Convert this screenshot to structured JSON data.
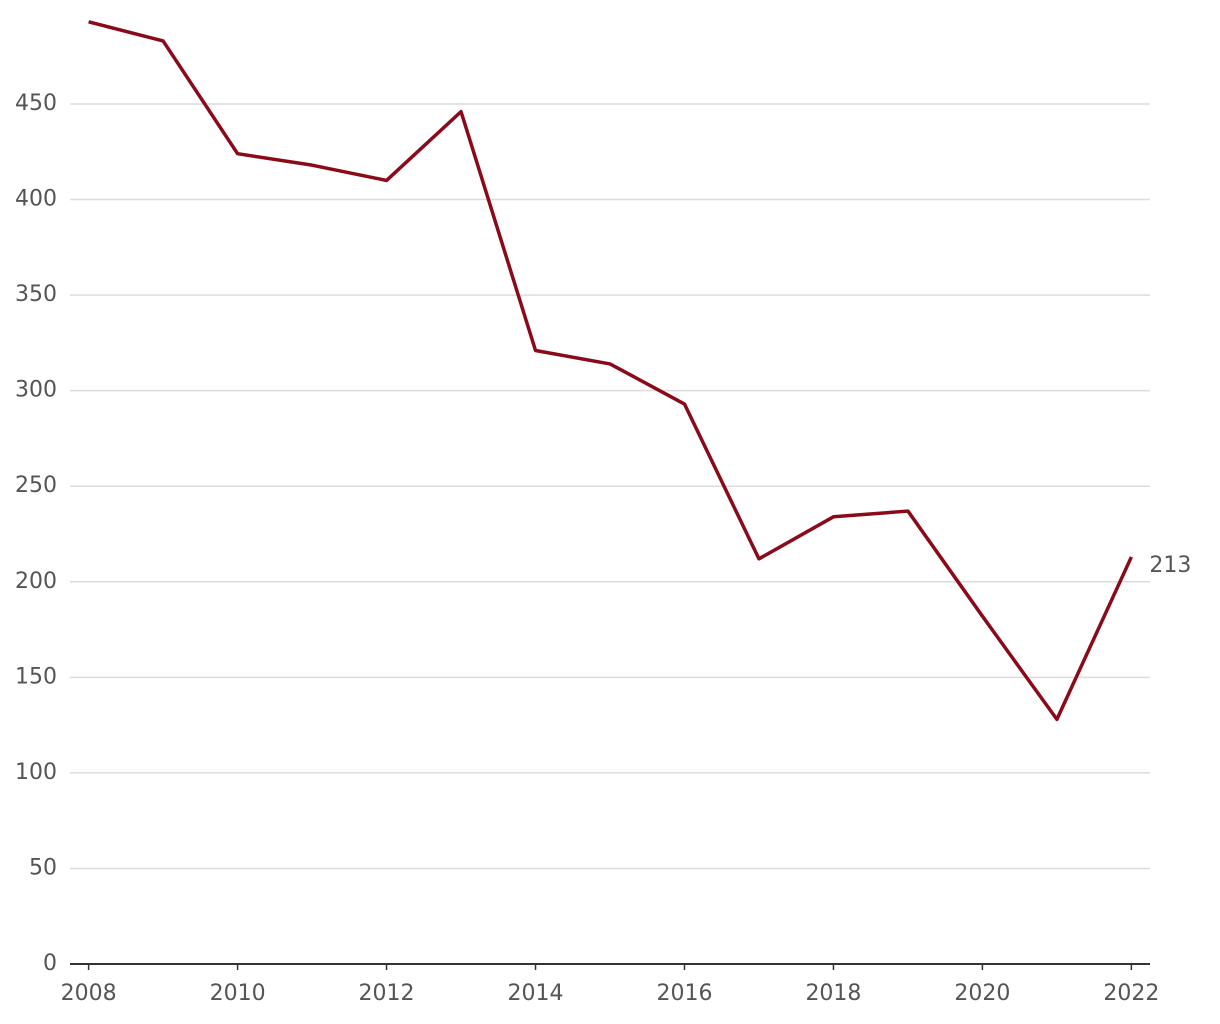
{
  "chart_data": {
    "type": "line",
    "x": [
      2008,
      2009,
      2010,
      2011,
      2012,
      2013,
      2014,
      2015,
      2016,
      2017,
      2018,
      2019,
      2020,
      2021,
      2022
    ],
    "series": [
      {
        "color": "#8b0a1a",
        "values": [
          493,
          483,
          424,
          418,
          410,
          446,
          321,
          314,
          293,
          212,
          234,
          237,
          182,
          128,
          213
        ]
      }
    ],
    "end_label": true,
    "xlim": [
      2007.75,
      2022.25
    ],
    "xticks": [
      2008,
      2010,
      2012,
      2014,
      2016,
      2018,
      2020,
      2022
    ],
    "ylim": [
      0,
      500
    ],
    "yticks": [
      0,
      50,
      100,
      150,
      200,
      250,
      300,
      350,
      400,
      450
    ],
    "grid": true
  }
}
